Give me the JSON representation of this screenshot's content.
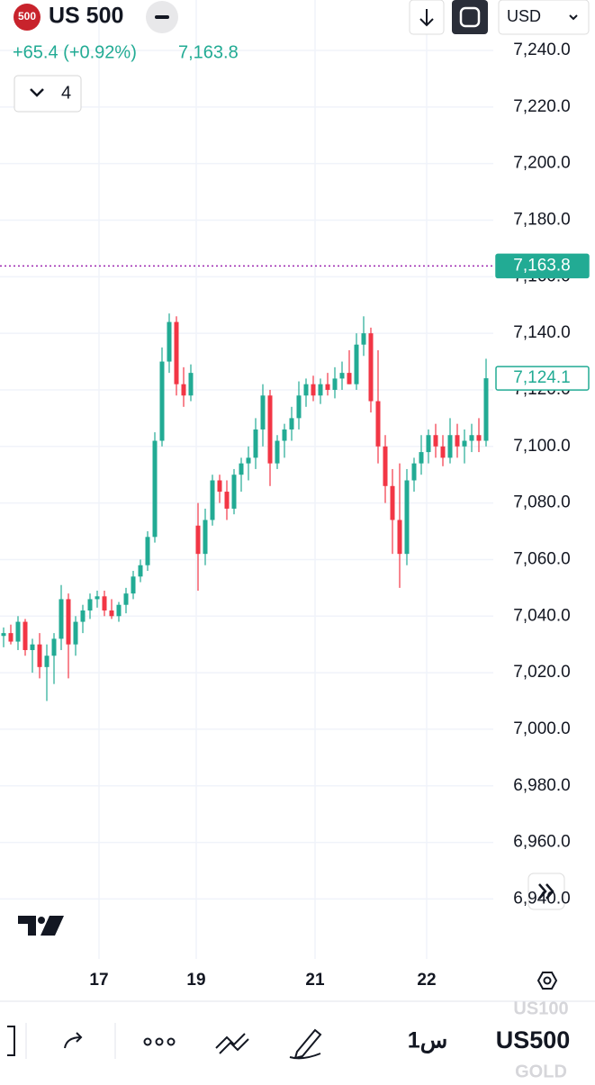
{
  "header": {
    "badge": "500",
    "symbol": "US 500",
    "change": "+65.4 (+0.92%)",
    "price": "7,163.8",
    "indicators": "4",
    "currency": "USD"
  },
  "chart_data": {
    "type": "candlestick",
    "up_color": "#22ab94",
    "down_color": "#f23645",
    "grid": true,
    "x": [
      0.5,
      1.5,
      2.5,
      3.5,
      4.5,
      5.5,
      6.5,
      7.5,
      8.5,
      9.5,
      10.5,
      11.5,
      12.5,
      13.5,
      14.5,
      15.5,
      16.5,
      17.5,
      18.5,
      19.5,
      20.5,
      21.5,
      22.5,
      23.5,
      24.5,
      25.5,
      26.5,
      27.5,
      28.5,
      29.5,
      30.5,
      31.5,
      32.5,
      33.5,
      34.5,
      35.5,
      36.5,
      37.5,
      38.5,
      39.5,
      40.5,
      41.5,
      42.5,
      43.5,
      44.5,
      45.5,
      46.5,
      47.5,
      48.5,
      49.5,
      50.5,
      51.5,
      52.5,
      53.5,
      54.5,
      55.5,
      56.5,
      57.5,
      58.5,
      59.5,
      60.5,
      61.5,
      62.5,
      63.5,
      64.5,
      65.5,
      66.5,
      67.5
    ],
    "open": [
      7033,
      7034,
      7031,
      7038,
      7028,
      7030,
      7022,
      7026,
      7032,
      7046,
      7030,
      7038,
      7042,
      7046,
      7047,
      7042,
      7040,
      7044,
      7048,
      7054,
      7058,
      7068,
      7102,
      7130,
      7144,
      7122,
      7118,
      7072,
      7062,
      7074,
      7088,
      7084,
      7078,
      7090,
      7094,
      7096,
      7106,
      7118,
      7094,
      7102,
      7106,
      7110,
      7118,
      7122,
      7118,
      7122,
      7120,
      7124,
      7126,
      7122,
      7136,
      7140,
      7116,
      7100,
      7086,
      7074,
      7062,
      7088,
      7094,
      7098,
      7104,
      7100,
      7096,
      7104,
      7100,
      7102,
      7104,
      7102
    ],
    "high": [
      7036,
      7037,
      7040,
      7039,
      7032,
      7034,
      7030,
      7034,
      7051,
      7048,
      7040,
      7044,
      7048,
      7049,
      7049,
      7046,
      7045,
      7050,
      7056,
      7060,
      7070,
      7105,
      7135,
      7147,
      7146,
      7128,
      7129,
      7080,
      7078,
      7090,
      7090,
      7088,
      7092,
      7096,
      7100,
      7110,
      7122,
      7120,
      7104,
      7108,
      7114,
      7123,
      7124,
      7125,
      7124,
      7126,
      7128,
      7130,
      7134,
      7140,
      7146,
      7142,
      7134,
      7104,
      7092,
      7094,
      7092,
      7096,
      7104,
      7106,
      7108,
      7104,
      7110,
      7108,
      7106,
      7108,
      7110,
      7131
    ],
    "low": [
      7029,
      7030,
      7028,
      7026,
      7020,
      7018,
      7010,
      7016,
      7028,
      7018,
      7026,
      7034,
      7039,
      7043,
      7040,
      7039,
      7038,
      7041,
      7046,
      7052,
      7056,
      7066,
      7100,
      7126,
      7118,
      7114,
      7116,
      7049,
      7058,
      7072,
      7080,
      7074,
      7076,
      7084,
      7088,
      7092,
      7100,
      7086,
      7092,
      7096,
      7102,
      7106,
      7114,
      7116,
      7115,
      7118,
      7117,
      7120,
      7122,
      7120,
      7132,
      7112,
      7094,
      7080,
      7062,
      7050,
      7058,
      7084,
      7090,
      7094,
      7096,
      7093,
      7094,
      7096,
      7094,
      7098,
      7098,
      7100
    ],
    "close": [
      7034,
      7031,
      7038,
      7028,
      7030,
      7022,
      7026,
      7032,
      7046,
      7030,
      7038,
      7042,
      7046,
      7047,
      7042,
      7040,
      7044,
      7048,
      7054,
      7058,
      7068,
      7102,
      7130,
      7144,
      7122,
      7118,
      7126,
      7062,
      7074,
      7088,
      7084,
      7078,
      7090,
      7094,
      7096,
      7106,
      7118,
      7094,
      7102,
      7106,
      7110,
      7118,
      7122,
      7118,
      7122,
      7120,
      7124,
      7126,
      7122,
      7136,
      7140,
      7116,
      7100,
      7086,
      7074,
      7062,
      7088,
      7094,
      7098,
      7104,
      7100,
      7096,
      7104,
      7100,
      7102,
      7104,
      7102,
      7124.1
    ],
    "xlim": [
      0,
      68.5
    ],
    "xticks": [
      {
        "value": 13.75,
        "label": "17"
      },
      {
        "value": 27.25,
        "label": "19"
      },
      {
        "value": 43.75,
        "label": "21"
      },
      {
        "value": 59.25,
        "label": "22"
      }
    ],
    "ylim": [
      6918.8,
      7245.1
    ],
    "yticks": [
      {
        "value": 6940,
        "label": "6,940.0"
      },
      {
        "value": 6960,
        "label": "6,960.0"
      },
      {
        "value": 6980,
        "label": "6,980.0"
      },
      {
        "value": 7000,
        "label": "7,000.0"
      },
      {
        "value": 7020,
        "label": "7,020.0"
      },
      {
        "value": 7040,
        "label": "7,040.0"
      },
      {
        "value": 7060,
        "label": "7,060.0"
      },
      {
        "value": 7080,
        "label": "7,080.0"
      },
      {
        "value": 7100,
        "label": "7,100.0"
      },
      {
        "value": 7120,
        "label": "7,120.0"
      },
      {
        "value": 7140,
        "label": "7,140.0"
      },
      {
        "value": 7160,
        "label": "7,160.0"
      },
      {
        "value": 7180,
        "label": "7,180.0"
      },
      {
        "value": 7200,
        "label": "7,200.0"
      },
      {
        "value": 7220,
        "label": "7,220.0"
      },
      {
        "value": 7240,
        "label": "7,240.0"
      }
    ],
    "markers": [
      {
        "value": 7163.8,
        "label": "7,163.8",
        "style": "solid"
      },
      {
        "value": 7124.1,
        "label": "7,124.1",
        "style": "outline"
      }
    ]
  },
  "toolbar": {
    "interval": "1س",
    "symbol": "US500",
    "above": "US100",
    "below": "GOLD"
  }
}
